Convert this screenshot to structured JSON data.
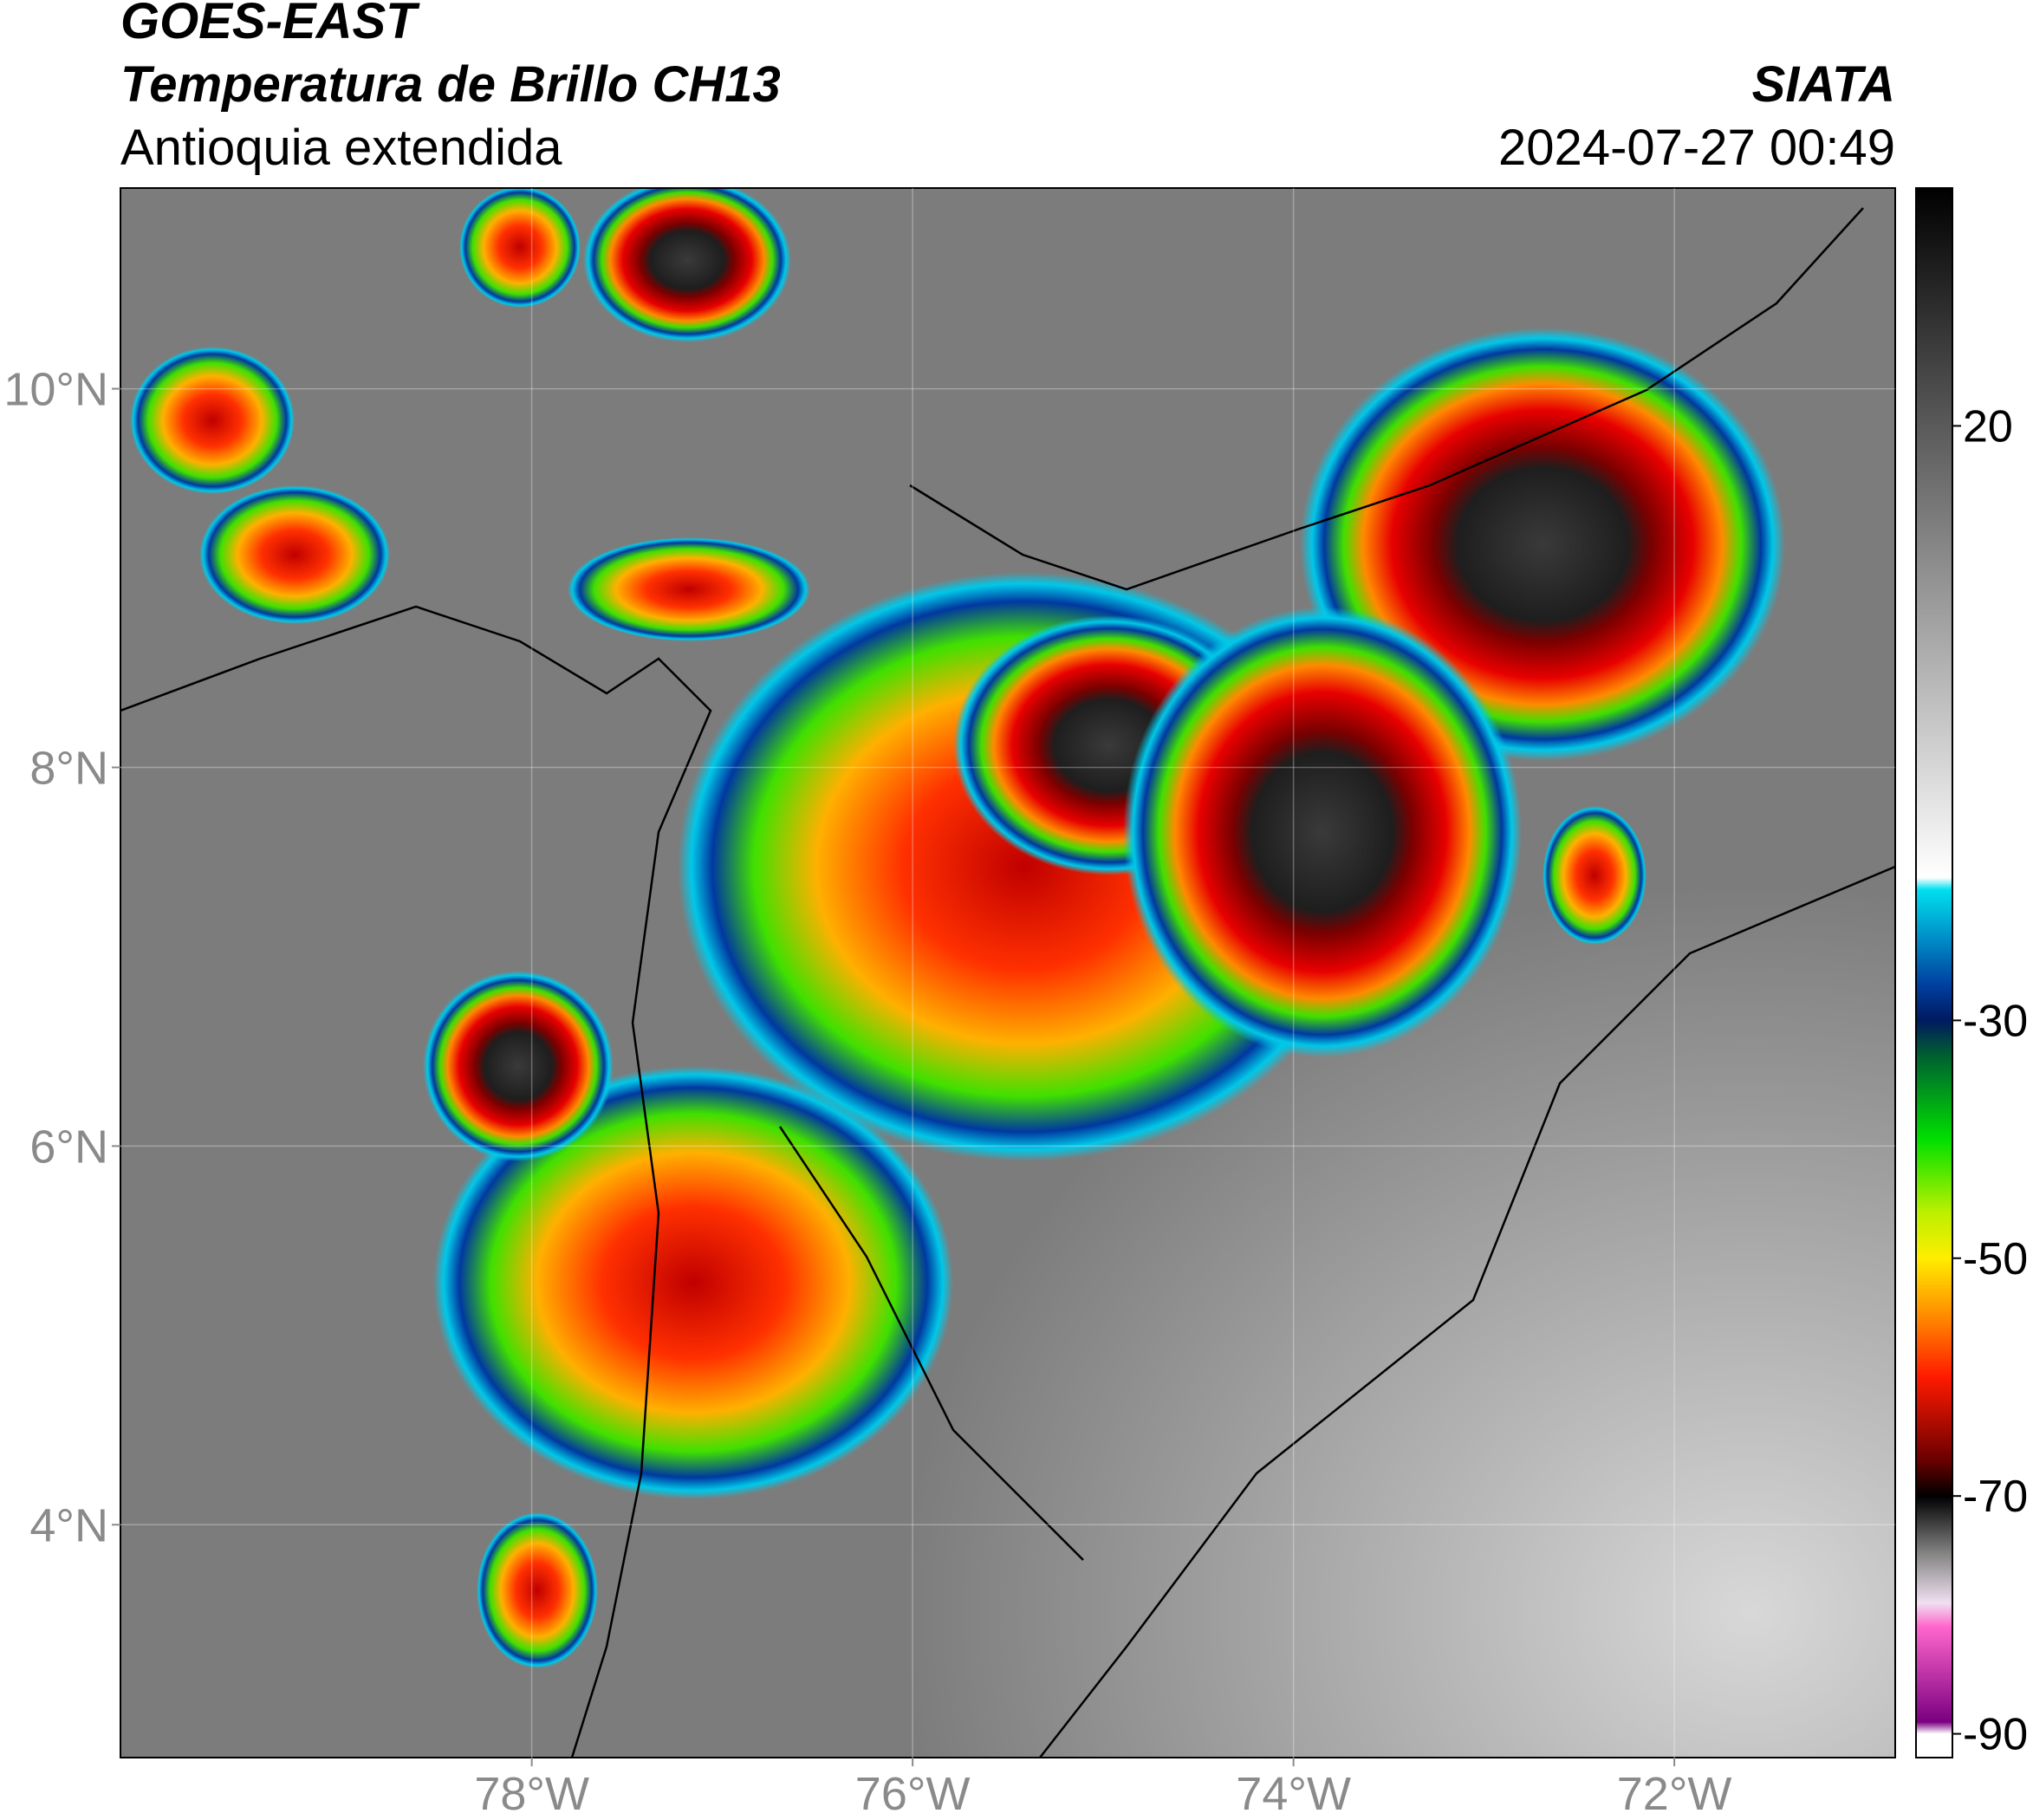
{
  "header": {
    "title": "GOES-EAST",
    "subtitle": "Temperatura de Brillo CH13",
    "region": "Antioquia extendida",
    "agency": "SIATA",
    "datetime": "2024-07-27 00:49"
  },
  "map": {
    "xlim": [
      -80.16,
      -70.84
    ],
    "ylim": [
      2.77,
      11.06
    ],
    "xticks": [
      {
        "value": -78,
        "label": "78°W"
      },
      {
        "value": -76,
        "label": "76°W"
      },
      {
        "value": -74,
        "label": "74°W"
      },
      {
        "value": -72,
        "label": "72°W"
      }
    ],
    "yticks": [
      {
        "value": 4,
        "label": "4°N"
      },
      {
        "value": 6,
        "label": "6°N"
      },
      {
        "value": 8,
        "label": "8°N"
      },
      {
        "value": 10,
        "label": "10°N"
      }
    ],
    "grid": true
  },
  "colorbar": {
    "lim": [
      -92,
      40
    ],
    "ticks": [
      20,
      -30,
      -50,
      -70,
      -90
    ],
    "colormap": [
      {
        "value": 40,
        "color": "#000000"
      },
      {
        "value": 20,
        "color": "#5a5a5a"
      },
      {
        "value": -18,
        "color": "#ffffff"
      },
      {
        "value": -19,
        "color": "#00e0f0"
      },
      {
        "value": -27,
        "color": "#0040a0"
      },
      {
        "value": -30,
        "color": "#001a60"
      },
      {
        "value": -33,
        "color": "#006030"
      },
      {
        "value": -40,
        "color": "#00e000"
      },
      {
        "value": -46,
        "color": "#b8f000"
      },
      {
        "value": -50,
        "color": "#ffee00"
      },
      {
        "value": -55,
        "color": "#ff8800"
      },
      {
        "value": -60,
        "color": "#ff1a00"
      },
      {
        "value": -67,
        "color": "#6a0000"
      },
      {
        "value": -70,
        "color": "#000000"
      },
      {
        "value": -75,
        "color": "#888888"
      },
      {
        "value": -79,
        "color": "#f0e0f0"
      },
      {
        "value": -81,
        "color": "#ff66cc"
      },
      {
        "value": -89,
        "color": "#7a0080"
      },
      {
        "value": -90,
        "color": "#ffffff"
      }
    ]
  }
}
